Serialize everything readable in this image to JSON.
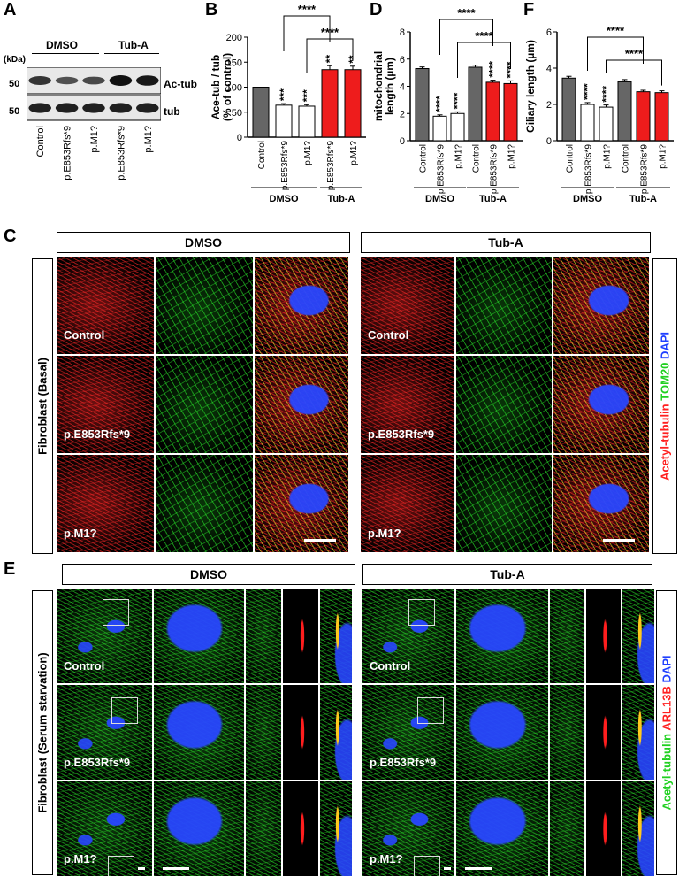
{
  "panel_letters": {
    "a": "A",
    "b": "B",
    "c": "C",
    "d": "D",
    "e": "E",
    "f": "F"
  },
  "blot": {
    "kda": "(kDa)",
    "groups": [
      "DMSO",
      "Tub-A"
    ],
    "bands": [
      {
        "name": "Ac-tub",
        "mw": "50"
      },
      {
        "name": "tub",
        "mw": "50"
      }
    ],
    "lanes": [
      "Control",
      "p.E853Rfs*9",
      "p.M1?",
      "p.E853Rfs*9",
      "p.M1?"
    ],
    "band_intensity": {
      "Ac-tub": [
        0.75,
        0.55,
        0.6,
        1.0,
        0.95
      ],
      "tub": [
        0.9,
        0.9,
        0.9,
        0.9,
        0.9
      ]
    }
  },
  "colors": {
    "dmso_control": "#666666",
    "dmso_mutant": "#ffffff",
    "tuba_control": "#666666",
    "tuba_mutant": "#ee1c1c",
    "red": "#ff2020",
    "green": "#20d020",
    "blue": "#2040ff"
  },
  "chart_data": [
    {
      "type": "bar",
      "panel": "B",
      "ylabel": "Ace-tub / tub\n(% of control)",
      "ylim": [
        0,
        200
      ],
      "yticks": [
        0,
        50,
        100,
        150,
        200
      ],
      "categories": [
        "Control",
        "p.E853Rfs*9",
        "p.M1?",
        "p.E853Rfs*9",
        "p.M1?"
      ],
      "values": [
        100,
        64,
        62,
        135,
        135
      ],
      "errors": [
        0,
        3,
        3,
        8,
        7
      ],
      "bar_sig": [
        "",
        "***",
        "***",
        "**",
        "**"
      ],
      "groups": [
        {
          "label": "DMSO",
          "from": 0,
          "to": 2
        },
        {
          "label": "Tub-A",
          "from": 3,
          "to": 4
        }
      ],
      "brackets": [
        {
          "from": 1,
          "to": 3,
          "label": "****"
        },
        {
          "from": 2,
          "to": 4,
          "label": "****"
        }
      ]
    },
    {
      "type": "bar",
      "panel": "D",
      "ylabel": "mitochondrial\nlength (µm)",
      "ylim": [
        0,
        8
      ],
      "yticks": [
        0,
        2,
        4,
        6,
        8
      ],
      "categories": [
        "Control",
        "p.E853Rfs*9",
        "p.M1?",
        "Control",
        "p.E853Rfs*9",
        "p.M1?"
      ],
      "values": [
        5.3,
        1.8,
        2.0,
        5.4,
        4.3,
        4.2
      ],
      "errors": [
        0.12,
        0.1,
        0.12,
        0.15,
        0.15,
        0.2
      ],
      "bar_sig": [
        "",
        "****",
        "****",
        "",
        "****",
        "****"
      ],
      "groups": [
        {
          "label": "DMSO",
          "from": 0,
          "to": 2
        },
        {
          "label": "Tub-A",
          "from": 3,
          "to": 5
        }
      ],
      "brackets": [
        {
          "from": 1,
          "to": 4,
          "label": "****"
        },
        {
          "from": 2,
          "to": 5,
          "label": "****"
        }
      ]
    },
    {
      "type": "bar",
      "panel": "F",
      "ylabel": "Ciliary length (µm)",
      "ylim": [
        0,
        6
      ],
      "yticks": [
        0,
        2,
        4,
        6
      ],
      "categories": [
        "Control",
        "p.E853Rfs*9",
        "p.M1?",
        "Control",
        "p.E853Rfs*9",
        "p.M1?"
      ],
      "values": [
        3.45,
        2.0,
        1.85,
        3.25,
        2.7,
        2.65
      ],
      "errors": [
        0.1,
        0.1,
        0.12,
        0.12,
        0.08,
        0.1
      ],
      "bar_sig": [
        "",
        "****",
        "****",
        "",
        "",
        ""
      ],
      "groups": [
        {
          "label": "DMSO",
          "from": 0,
          "to": 2
        },
        {
          "label": "Tub-A",
          "from": 3,
          "to": 5
        }
      ],
      "brackets": [
        {
          "from": 1,
          "to": 4,
          "label": "****"
        },
        {
          "from": 2,
          "to": 5,
          "label": "****"
        }
      ]
    }
  ],
  "panel_c": {
    "side_label": "Fibroblast (Basal)",
    "groups": [
      "DMSO",
      "Tub-A"
    ],
    "rows": [
      "Control",
      "p.E853Rfs*9",
      "p.M1?"
    ],
    "stain": [
      {
        "text": "Acetyl-tubulin",
        "color": "#ff2020"
      },
      {
        "text": "TOM20",
        "color": "#20d020"
      },
      {
        "text": "DAPI",
        "color": "#2040ff"
      }
    ]
  },
  "panel_e": {
    "side_label": "Fibroblast (Serum starvation)",
    "groups": [
      "DMSO",
      "Tub-A"
    ],
    "rows": [
      "Control",
      "p.E853Rfs*9",
      "p.M1?"
    ],
    "stain": [
      {
        "text": "Acetyl-tubulin",
        "color": "#20d020"
      },
      {
        "text": "ARL13B",
        "color": "#ff2020"
      },
      {
        "text": "DAPI",
        "color": "#2040ff"
      }
    ]
  }
}
